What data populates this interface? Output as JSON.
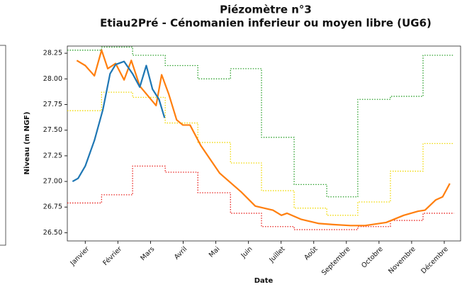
{
  "chart_data": {
    "type": "line",
    "title": "Piézomètre n°3",
    "subtitle": "Etiau2Pré - Cénomanien inferieur ou moyen libre (UG6)",
    "xlabel": "Date",
    "ylabel": "Niveau (m NGF)",
    "xlim": [
      0.45,
      12.5
    ],
    "ylim": [
      26.42,
      28.32
    ],
    "xticks": [
      {
        "value": 1,
        "label": "Janvier"
      },
      {
        "value": 2,
        "label": "Février"
      },
      {
        "value": 3,
        "label": "Mars"
      },
      {
        "value": 4,
        "label": "Avril"
      },
      {
        "value": 5,
        "label": "Mai"
      },
      {
        "value": 6,
        "label": "Juin"
      },
      {
        "value": 7,
        "label": "Juillet"
      },
      {
        "value": 8,
        "label": "Août"
      },
      {
        "value": 9,
        "label": "Septembre"
      },
      {
        "value": 10,
        "label": "Octobre"
      },
      {
        "value": 11,
        "label": "Novembre"
      },
      {
        "value": 12,
        "label": "Décembre"
      }
    ],
    "yticks": [
      {
        "value": 26.5,
        "label": "26.50"
      },
      {
        "value": 26.75,
        "label": "26.75"
      },
      {
        "value": 27.0,
        "label": "27.00"
      },
      {
        "value": 27.25,
        "label": "27.25"
      },
      {
        "value": 27.5,
        "label": "27.50"
      },
      {
        "value": 27.75,
        "label": "27.75"
      },
      {
        "value": 28.0,
        "label": "28.00"
      },
      {
        "value": 28.25,
        "label": "28.25"
      }
    ],
    "series": [
      {
        "color": "#2ca02c",
        "style": "dotted",
        "step": "post",
        "x": [
          0.45,
          1.5,
          2.45,
          3.45,
          4.45,
          5.45,
          6.4,
          7.4,
          8.4,
          9.35,
          10.35,
          11.35,
          12.3
        ],
        "values": [
          28.28,
          28.31,
          28.23,
          28.13,
          28.0,
          28.1,
          27.43,
          26.97,
          26.85,
          27.8,
          27.83,
          28.23,
          28.23
        ]
      },
      {
        "color": "#f0d800",
        "style": "dotted",
        "step": "post",
        "x": [
          0.45,
          1.5,
          2.45,
          3.45,
          4.45,
          5.45,
          6.4,
          7.4,
          8.4,
          9.35,
          10.35,
          11.35,
          12.3
        ],
        "values": [
          27.69,
          27.87,
          27.82,
          27.57,
          27.38,
          27.18,
          26.91,
          26.74,
          26.67,
          26.8,
          27.1,
          27.37,
          27.37
        ]
      },
      {
        "color": "#e8221e",
        "style": "dotted",
        "step": "post",
        "x": [
          0.45,
          1.5,
          2.45,
          3.45,
          4.45,
          5.45,
          6.4,
          7.4,
          8.4,
          9.35,
          10.35,
          11.35,
          12.3
        ],
        "values": [
          26.79,
          26.87,
          27.15,
          27.09,
          26.89,
          26.69,
          26.56,
          26.53,
          26.53,
          26.56,
          26.62,
          26.69,
          26.69
        ]
      },
      {
        "color": "#ff7f0e",
        "style": "solid",
        "x": [
          0.74,
          1.0,
          1.28,
          1.5,
          1.69,
          1.93,
          2.19,
          2.41,
          2.67,
          3.17,
          3.34,
          3.56,
          3.8,
          3.99,
          4.21,
          4.54,
          5.12,
          5.77,
          6.21,
          6.75,
          7.01,
          7.18,
          7.62,
          8.16,
          8.59,
          9.13,
          9.57,
          10.22,
          10.76,
          11.2,
          11.41,
          11.74,
          11.95,
          12.17
        ],
        "values": [
          28.18,
          28.13,
          28.03,
          28.28,
          28.1,
          28.15,
          27.99,
          28.18,
          27.93,
          27.74,
          28.04,
          27.85,
          27.6,
          27.55,
          27.55,
          27.35,
          27.08,
          26.9,
          26.76,
          26.72,
          26.67,
          26.69,
          26.63,
          26.59,
          26.58,
          26.57,
          26.57,
          26.6,
          26.67,
          26.71,
          26.72,
          26.82,
          26.85,
          26.98
        ]
      },
      {
        "color": "#1f77b4",
        "style": "solid",
        "x": [
          0.61,
          0.78,
          1.0,
          1.28,
          1.54,
          1.76,
          1.93,
          2.19,
          2.45,
          2.67,
          2.87,
          3.06,
          3.26,
          3.43
        ],
        "values": [
          27.0,
          27.03,
          27.15,
          27.4,
          27.7,
          28.05,
          28.14,
          28.17,
          28.05,
          27.92,
          28.13,
          27.9,
          27.8,
          27.62
        ]
      }
    ]
  }
}
